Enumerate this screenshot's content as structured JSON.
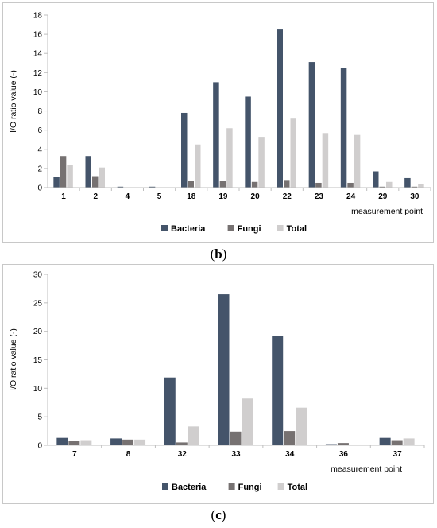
{
  "chart_data": [
    {
      "type": "bar",
      "panel_label": "b",
      "categories": [
        "1",
        "2",
        "4",
        "5",
        "18",
        "19",
        "20",
        "22",
        "23",
        "24",
        "29",
        "30"
      ],
      "series": [
        {
          "name": "Bacteria",
          "values": [
            1.1,
            3.3,
            0.1,
            0.1,
            7.8,
            11.0,
            9.5,
            16.5,
            13.1,
            12.5,
            1.7,
            1.0
          ]
        },
        {
          "name": "Fungi",
          "values": [
            3.3,
            1.2,
            0.0,
            0.0,
            0.7,
            0.7,
            0.6,
            0.8,
            0.5,
            0.5,
            0.1,
            0.1
          ]
        },
        {
          "name": "Total",
          "values": [
            2.4,
            2.1,
            0.0,
            0.0,
            4.5,
            6.2,
            5.3,
            7.2,
            5.7,
            5.5,
            0.6,
            0.4
          ]
        }
      ],
      "colors": [
        "#44546a",
        "#767171",
        "#d0cece"
      ],
      "ylabel": "I/O ratio value (-)",
      "xlabel": "measurement point",
      "ylim": [
        0,
        18
      ],
      "yticks": [
        0,
        2,
        4,
        6,
        8,
        10,
        12,
        14,
        16,
        18
      ],
      "legend_position": "bottom",
      "grid": false
    },
    {
      "type": "bar",
      "panel_label": "c",
      "categories": [
        "7",
        "8",
        "32",
        "33",
        "34",
        "36",
        "37"
      ],
      "series": [
        {
          "name": "Bacteria",
          "values": [
            1.3,
            1.2,
            11.9,
            26.5,
            19.2,
            0.2,
            1.3
          ]
        },
        {
          "name": "Fungi",
          "values": [
            0.8,
            1.0,
            0.5,
            2.4,
            2.5,
            0.4,
            0.9
          ]
        },
        {
          "name": "Total",
          "values": [
            0.9,
            1.0,
            3.3,
            8.2,
            6.6,
            0.1,
            1.2
          ]
        }
      ],
      "colors": [
        "#44546a",
        "#767171",
        "#d0cece"
      ],
      "ylabel": "I/O ratio value (-)",
      "xlabel": "measurement point",
      "ylim": [
        0,
        30
      ],
      "yticks": [
        0,
        5,
        10,
        15,
        20,
        25,
        30
      ],
      "legend_position": "bottom",
      "grid": false
    }
  ],
  "captions": {
    "b": {
      "open": "(",
      "letter": "b",
      "close": ")"
    },
    "c": {
      "open": "(",
      "letter": "c",
      "close": ")"
    }
  }
}
